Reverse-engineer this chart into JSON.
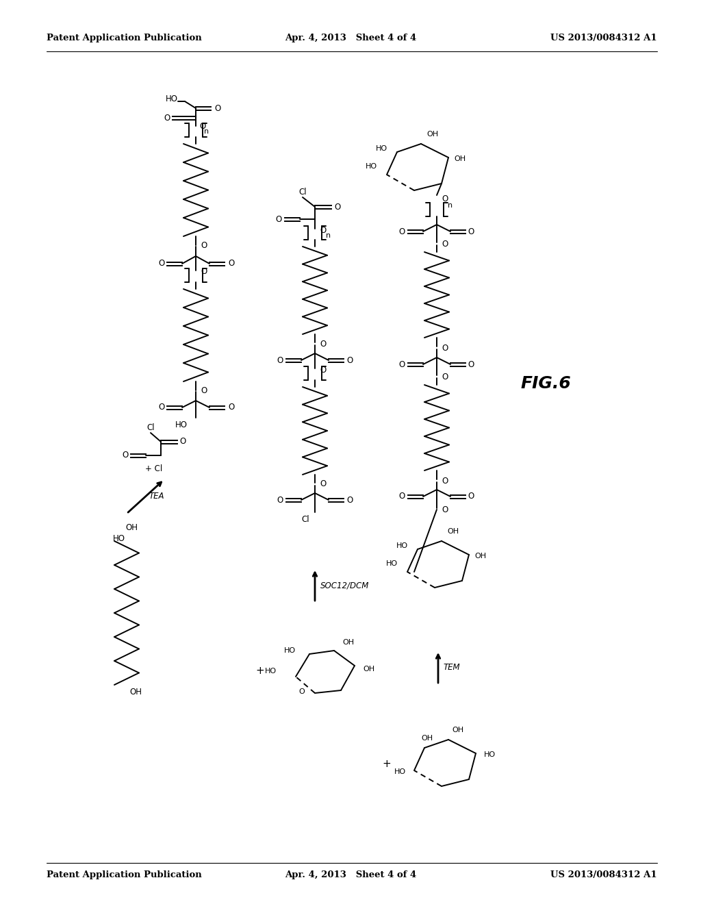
{
  "header_left": "Patent Application Publication",
  "header_center": "Apr. 4, 2013   Sheet 4 of 4",
  "header_right": "US 2013/0084312 A1",
  "fig_label": "FIG.6",
  "background": "#ffffff"
}
